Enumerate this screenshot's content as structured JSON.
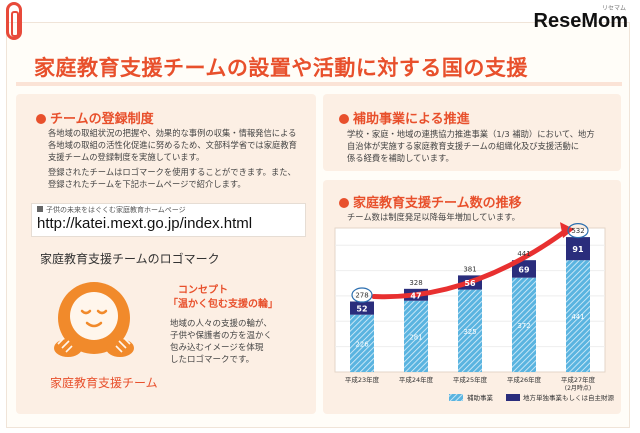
{
  "brand": {
    "logo": "ReseMom",
    "logo_sub": "リセマム"
  },
  "title": "家庭教育支援チームの設置や活動に対する国の支援",
  "team_registration": {
    "heading": "チームの登録制度",
    "paragraph1": [
      "各地域の取組状況の把握や、効果的な事例の収集・情報発信による",
      "各地域の取組の活性化促進に努めるため、文部科学省では家庭教育",
      "支援チームの登録制度を実施しています。"
    ],
    "paragraph2": [
      "登録されたチームはロゴマークを使用することができます。また、",
      "登録されたチームを下記ホームページで紹介します。"
    ],
    "url_label": "子供の未来をはぐくむ家庭教育ホームページ",
    "url": "http://katei.mext.go.jp/index.html"
  },
  "logo_mark": {
    "heading": "家庭教育支援チームのロゴマーク",
    "concept_label": "コンセプト",
    "concept_title": "「温かく包む支援の輪」",
    "concept_text": [
      "地域の人々の支援の輪が、",
      "子供や保護者の方を温かく",
      "包み込むイメージを体現",
      "したロゴマークです。"
    ],
    "mascot_name": "家庭教育支援チーム"
  },
  "subsidy": {
    "heading": "補助事業による推進",
    "text": [
      "学校・家庭・地域の連携協力推進事業（1/3 補助）において、地方",
      "自治体が実施する家庭教育支援チームの組織化及び支援活動に",
      "係る経費を補助しています。"
    ]
  },
  "chart_section": {
    "heading": "家庭教育支援チーム数の推移",
    "subtitle": "チーム数は制度発足以降毎年増加しています。"
  },
  "chart_data": {
    "type": "bar",
    "stacked": true,
    "categories": [
      "平成23年度",
      "平成24年度",
      "平成25年度",
      "平成26年度",
      "平成27年度"
    ],
    "category_notes": [
      "",
      "",
      "",
      "",
      "(2月時点)"
    ],
    "series": [
      {
        "name": "補助事業",
        "values": [
          226,
          281,
          325,
          372,
          441
        ],
        "color": "#5ab4e0"
      },
      {
        "name": "地方単独事業もしくは自主財源",
        "values": [
          52,
          47,
          56,
          69,
          91
        ],
        "color": "#2a2d7c"
      }
    ],
    "totals": [
      278,
      328,
      381,
      441,
      532
    ],
    "ylim": [
      0,
      560
    ],
    "highlighted_totals": [
      0,
      4
    ],
    "legend_position": "bottom"
  },
  "colors": {
    "accent": "#e8502c",
    "panel": "#fcefe4",
    "arrow": "#e83030"
  }
}
